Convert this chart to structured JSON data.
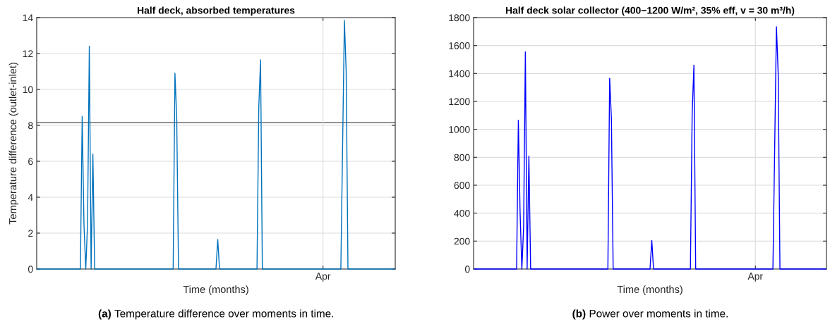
{
  "chart_data": [
    {
      "type": "line",
      "title": "Half deck, absorbed temperatures",
      "xlabel": "Time (months)",
      "ylabel": "Temperature difference (outlet-inlet)",
      "categories": [
        null,
        null,
        null,
        null,
        null,
        null,
        null,
        null,
        null,
        null,
        null,
        null,
        null,
        null,
        null,
        null,
        null,
        null,
        null,
        null,
        null,
        null,
        null,
        null,
        null,
        null,
        null,
        null,
        null,
        null,
        null,
        null,
        null,
        null,
        null,
        null,
        null,
        null,
        null,
        null,
        null,
        null,
        null,
        null,
        null,
        null,
        null,
        null,
        null,
        null,
        null,
        null,
        null,
        null,
        null,
        null,
        null,
        null,
        null,
        null,
        null,
        null,
        null,
        null,
        null,
        null,
        null,
        null,
        null,
        null,
        null,
        null,
        null,
        null,
        null,
        null,
        null,
        null,
        null,
        null,
        null,
        null,
        null,
        null,
        null,
        null,
        null,
        null,
        null,
        null,
        null,
        null,
        null,
        null,
        null,
        null,
        null,
        null,
        null,
        null,
        null,
        null,
        null,
        null,
        null,
        null,
        null,
        null,
        null,
        null,
        null,
        null,
        null,
        null,
        null,
        null,
        null,
        null,
        null,
        null,
        null,
        null,
        null,
        null,
        null,
        null,
        null,
        null,
        null,
        null,
        null,
        null,
        null,
        null,
        null,
        null,
        null,
        null,
        null,
        null,
        null,
        null,
        null,
        null,
        null,
        null,
        null,
        null,
        null,
        null,
        null,
        null,
        null,
        null,
        null,
        null,
        null,
        null,
        null,
        null,
        "Apr",
        null,
        null,
        null,
        null,
        null,
        null,
        null,
        null,
        null,
        null,
        null,
        null,
        null,
        null,
        null,
        null,
        null,
        null,
        null,
        null,
        null,
        null,
        null,
        null,
        null,
        null,
        null,
        null,
        null,
        null,
        null,
        null,
        null,
        null,
        null,
        null,
        null,
        null,
        null,
        null
      ],
      "series": [
        {
          "color": "#0072bd",
          "values": [
            0,
            0,
            0,
            0,
            0,
            0,
            0,
            0,
            0,
            0,
            0,
            0,
            0,
            0,
            0,
            0,
            0,
            0,
            0,
            0,
            0,
            0,
            0,
            0,
            0,
            8.5,
            2.5,
            0,
            2.5,
            12.4,
            0,
            6.4,
            0,
            0,
            0,
            0,
            0,
            0,
            0,
            0,
            0,
            0,
            0,
            0,
            0,
            0,
            0,
            0,
            0,
            0,
            0,
            0,
            0,
            0,
            0,
            0,
            0,
            0,
            0,
            0,
            0,
            0,
            0,
            0,
            0,
            0,
            0,
            0,
            0,
            0,
            0,
            0,
            0,
            0,
            0,
            0,
            0,
            10.9,
            8.4,
            0,
            0,
            0,
            0,
            0,
            0,
            0,
            0,
            0,
            0,
            0,
            0,
            0,
            0,
            0,
            0,
            0,
            0,
            0,
            0,
            0,
            0,
            1.65,
            0,
            0,
            0,
            0,
            0,
            0,
            0,
            0,
            0,
            0,
            0,
            0,
            0,
            0,
            0,
            0,
            0,
            0,
            0,
            0,
            0,
            0,
            9.0,
            11.65,
            0,
            0,
            0,
            0,
            0,
            0,
            0,
            0,
            0,
            0,
            0,
            0,
            0,
            0,
            0,
            0,
            0,
            0,
            0,
            0,
            0,
            0,
            0,
            0,
            0,
            0,
            0,
            0,
            0,
            0,
            0,
            0,
            0,
            0,
            0,
            0,
            0,
            0,
            0,
            0,
            0,
            0,
            0,
            0,
            0,
            6.9,
            13.85,
            11.0,
            0,
            0,
            0,
            0,
            0,
            0,
            0,
            0,
            0,
            0,
            0,
            0,
            0,
            0,
            0,
            0,
            0,
            0,
            0,
            0,
            0,
            0,
            0,
            0,
            0,
            0,
            0
          ]
        }
      ],
      "ylim": [
        0,
        14
      ],
      "yticks": [
        0,
        2,
        4,
        6,
        8,
        10,
        12,
        14
      ],
      "ref_lines": [
        {
          "axis": "y",
          "value": 8.15,
          "color": "#4d4d4d"
        }
      ],
      "grid": true,
      "marker": "none",
      "line_style": "solid",
      "annotations": [
        "(a) Temperature difference over moments in time."
      ]
    },
    {
      "type": "line",
      "title": "Half deck solar collector (400−1200 W/m², 35% eff, v = 30 m³/h)",
      "xlabel": "Time (months)",
      "categories": [
        null,
        null,
        null,
        null,
        null,
        null,
        null,
        null,
        null,
        null,
        null,
        null,
        null,
        null,
        null,
        null,
        null,
        null,
        null,
        null,
        null,
        null,
        null,
        null,
        null,
        null,
        null,
        null,
        null,
        null,
        null,
        null,
        null,
        null,
        null,
        null,
        null,
        null,
        null,
        null,
        null,
        null,
        null,
        null,
        null,
        null,
        null,
        null,
        null,
        null,
        null,
        null,
        null,
        null,
        null,
        null,
        null,
        null,
        null,
        null,
        null,
        null,
        null,
        null,
        null,
        null,
        null,
        null,
        null,
        null,
        null,
        null,
        null,
        null,
        null,
        null,
        null,
        null,
        null,
        null,
        null,
        null,
        null,
        null,
        null,
        null,
        null,
        null,
        null,
        null,
        null,
        null,
        null,
        null,
        null,
        null,
        null,
        null,
        null,
        null,
        null,
        null,
        null,
        null,
        null,
        null,
        null,
        null,
        null,
        null,
        null,
        null,
        null,
        null,
        null,
        null,
        null,
        null,
        null,
        null,
        null,
        null,
        null,
        null,
        null,
        null,
        null,
        null,
        null,
        null,
        null,
        null,
        null,
        null,
        null,
        null,
        null,
        null,
        null,
        null,
        null,
        null,
        null,
        null,
        null,
        null,
        null,
        null,
        null,
        null,
        null,
        null,
        null,
        null,
        null,
        null,
        null,
        null,
        null,
        null,
        "Apr",
        null,
        null,
        null,
        null,
        null,
        null,
        null,
        null,
        null,
        null,
        null,
        null,
        null,
        null,
        null,
        null,
        null,
        null,
        null,
        null,
        null,
        null,
        null,
        null,
        null,
        null,
        null,
        null,
        null,
        null,
        null,
        null,
        null,
        null,
        null,
        null,
        null,
        null,
        null,
        null
      ],
      "series": [
        {
          "color": "#0000ff",
          "values": [
            0,
            0,
            0,
            0,
            0,
            0,
            0,
            0,
            0,
            0,
            0,
            0,
            0,
            0,
            0,
            0,
            0,
            0,
            0,
            0,
            0,
            0,
            0,
            0,
            0,
            1065,
            400,
            0,
            300,
            1555,
            0,
            808,
            0,
            0,
            0,
            0,
            0,
            0,
            0,
            0,
            0,
            0,
            0,
            0,
            0,
            0,
            0,
            0,
            0,
            0,
            0,
            0,
            0,
            0,
            0,
            0,
            0,
            0,
            0,
            0,
            0,
            0,
            0,
            0,
            0,
            0,
            0,
            0,
            0,
            0,
            0,
            0,
            0,
            0,
            0,
            0,
            0,
            1365,
            1080,
            0,
            0,
            0,
            0,
            0,
            0,
            0,
            0,
            0,
            0,
            0,
            0,
            0,
            0,
            0,
            0,
            0,
            0,
            0,
            0,
            0,
            0,
            205,
            0,
            0,
            0,
            0,
            0,
            0,
            0,
            0,
            0,
            0,
            0,
            0,
            0,
            0,
            0,
            0,
            0,
            0,
            0,
            0,
            0,
            0,
            1110,
            1460,
            0,
            0,
            0,
            0,
            0,
            0,
            0,
            0,
            0,
            0,
            0,
            0,
            0,
            0,
            0,
            0,
            0,
            0,
            0,
            0,
            0,
            0,
            0,
            0,
            0,
            0,
            0,
            0,
            0,
            0,
            0,
            0,
            0,
            0,
            0,
            0,
            0,
            0,
            0,
            0,
            0,
            0,
            0,
            0,
            0,
            865,
            1735,
            1400,
            0,
            0,
            0,
            0,
            0,
            0,
            0,
            0,
            0,
            0,
            0,
            0,
            0,
            0,
            0,
            0,
            0,
            0,
            0,
            0,
            0,
            0,
            0,
            0,
            0,
            0,
            0
          ]
        }
      ],
      "ylim": [
        0,
        1800
      ],
      "yticks": [
        0,
        200,
        400,
        600,
        800,
        1000,
        1200,
        1400,
        1600,
        1800
      ],
      "grid": true,
      "marker": "none",
      "line_style": "solid",
      "annotations": [
        "(b) Power over moments in time."
      ]
    }
  ]
}
